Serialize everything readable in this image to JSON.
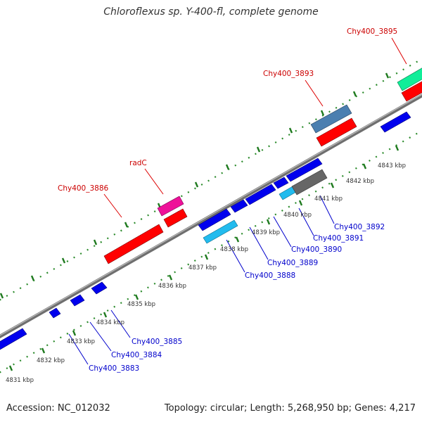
{
  "title": "Chloroflexus sp. Y-400-fl, complete genome",
  "footer": {
    "accession": "Accession: NC_012032",
    "topology": "Topology: circular; Length: 5,268,950 bp; Genes: 4,217"
  },
  "colors": {
    "forward": "#ff0000",
    "reverse": "#0000ff",
    "backbone": "#8a8a8a",
    "dots": "#2a8a2a",
    "label_forward": "#cc0000",
    "label_reverse": "#0000cc"
  },
  "ticks": [
    "4831 kbp",
    "4832 kbp",
    "4833 kbp",
    "4834 kbp",
    "4835 kbp",
    "4836 kbp",
    "4837 kbp",
    "4838 kbp",
    "4839 kbp",
    "4840 kbp",
    "4841 kbp",
    "4842 kbp",
    "4843 kbp"
  ],
  "forward_labels": [
    "Chy400_3886",
    "radC",
    "Chy400_3893",
    "Chy400_3895"
  ],
  "reverse_labels": [
    "Chy400_3883",
    "Chy400_3884",
    "Chy400_3885",
    "Chy400_3888",
    "Chy400_3889",
    "Chy400_3890",
    "Chy400_3891",
    "Chy400_3892"
  ]
}
